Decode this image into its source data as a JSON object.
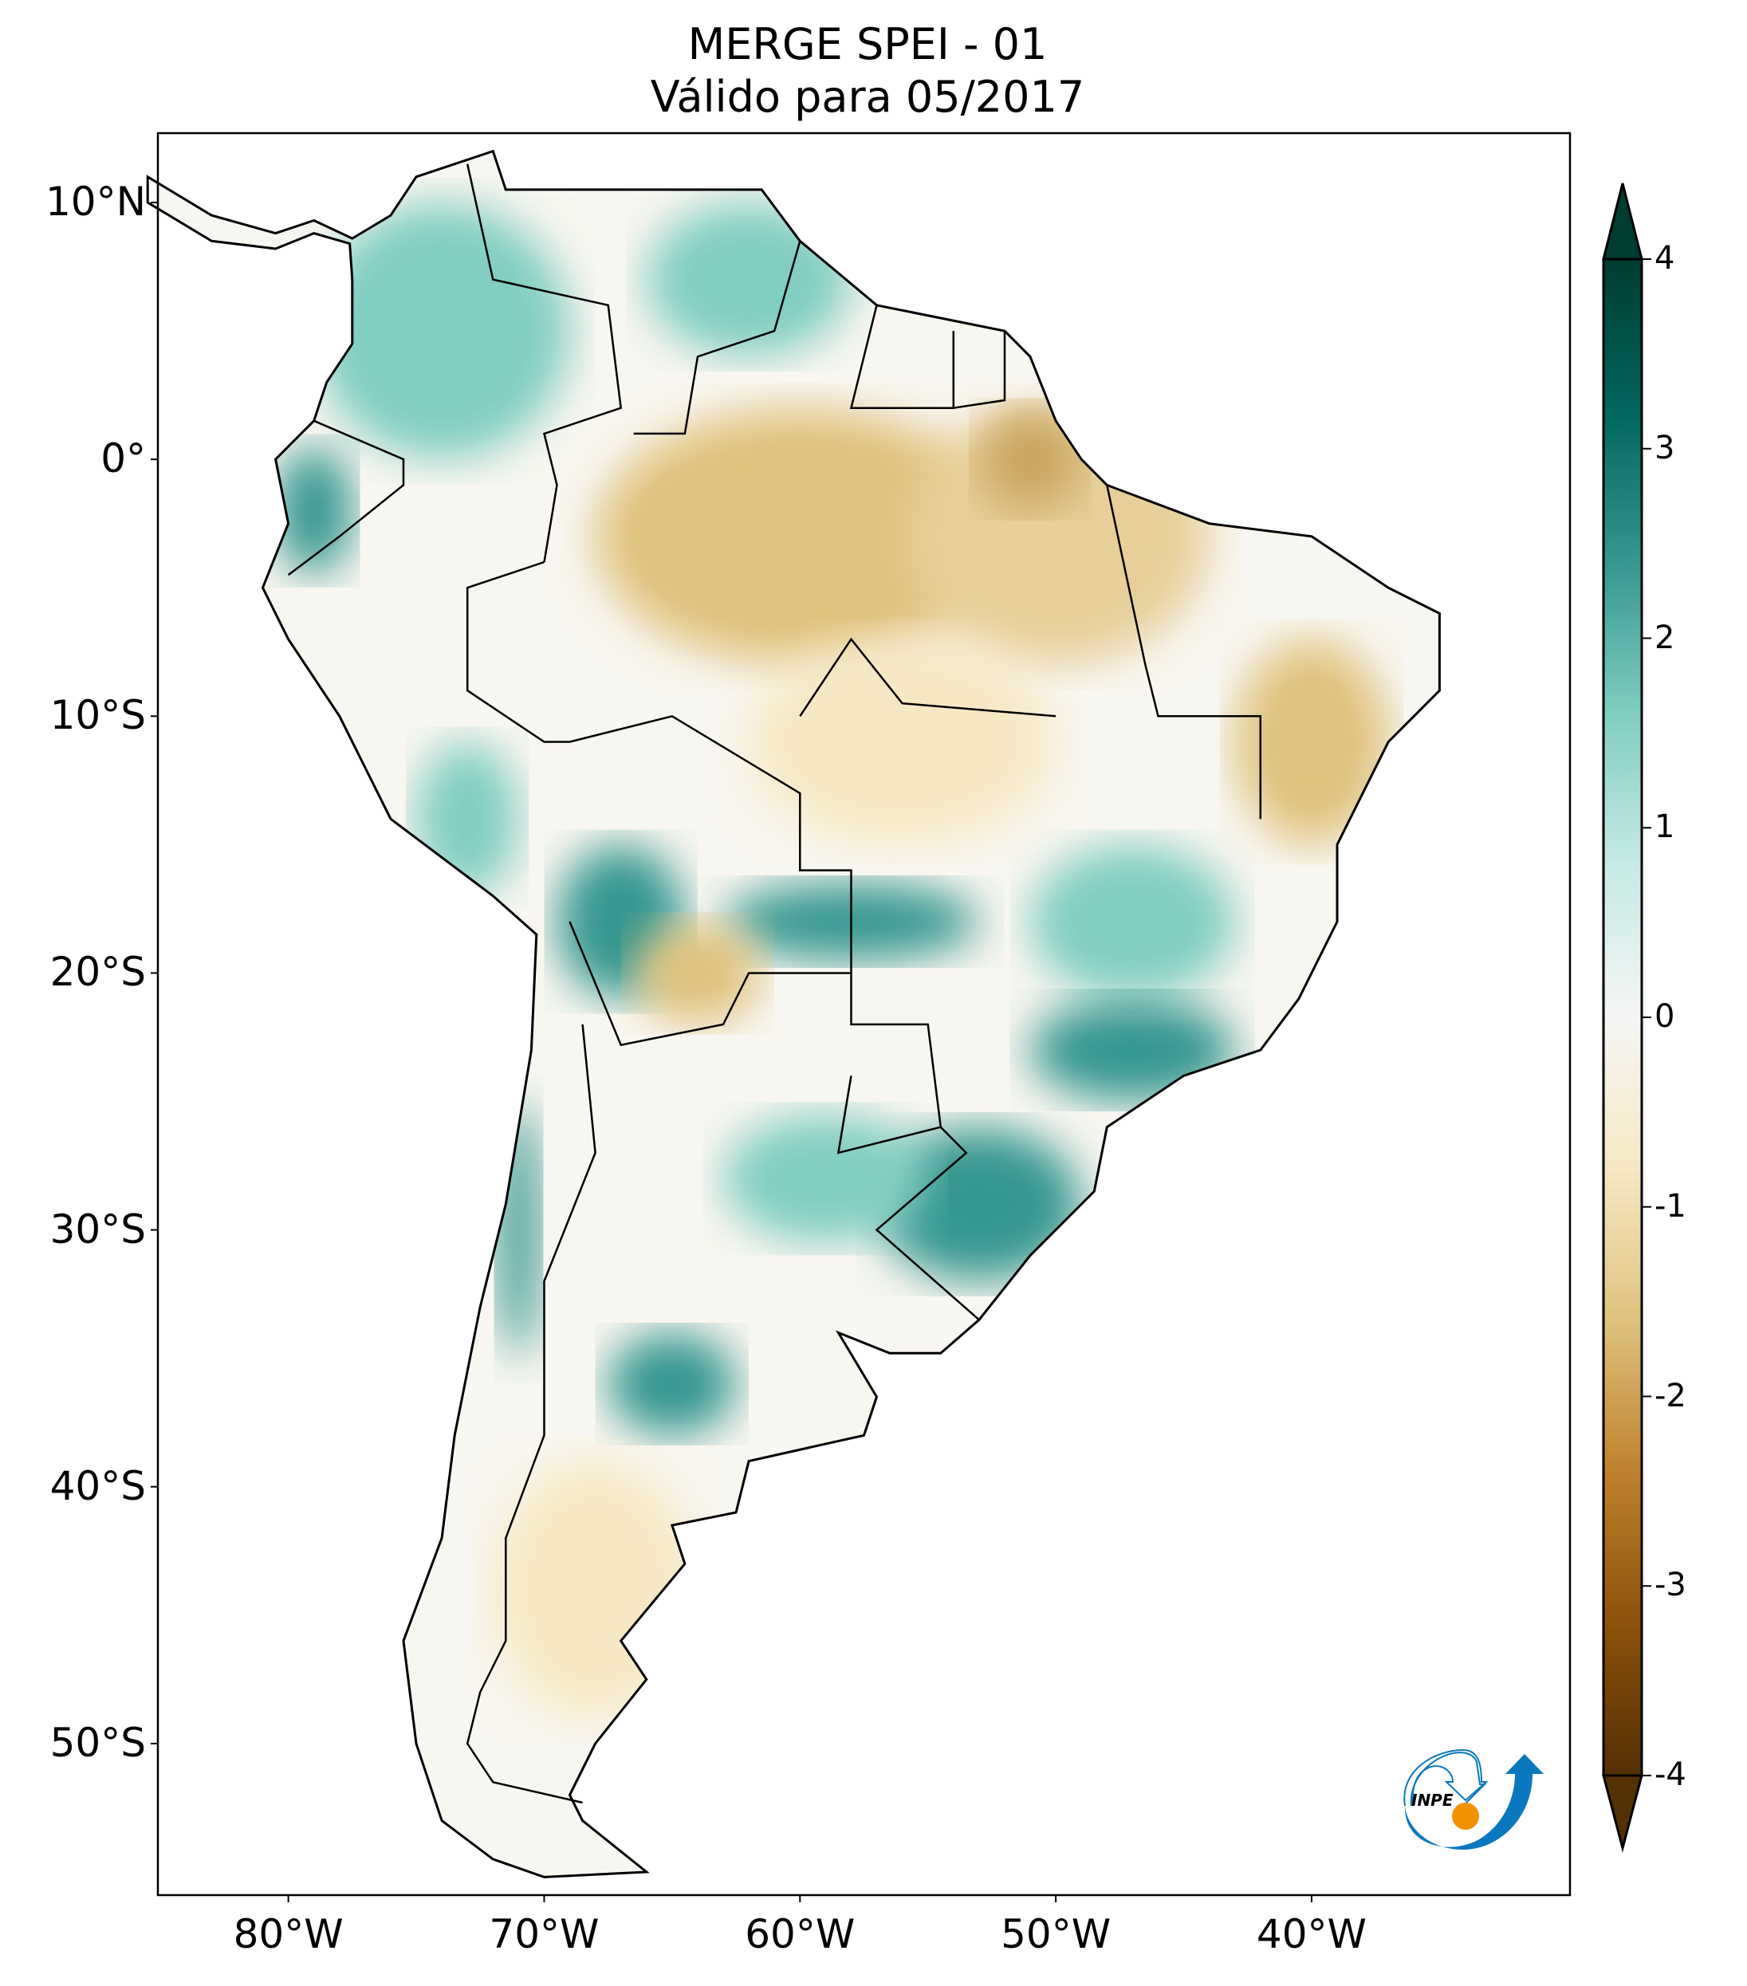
{
  "title": {
    "line1": "MERGE   SPEI - 01",
    "line2": "Válido para 05/2017"
  },
  "map": {
    "extent": {
      "lon_min": -85.1,
      "lon_max": -29.9,
      "lat_min": -55.9,
      "lat_max": 12.7
    },
    "lat_ticks": [
      {
        "value": 10,
        "label": "10°N"
      },
      {
        "value": 0,
        "label": "0°"
      },
      {
        "value": -10,
        "label": "10°S"
      },
      {
        "value": -20,
        "label": "20°S"
      },
      {
        "value": -30,
        "label": "30°S"
      },
      {
        "value": -40,
        "label": "40°S"
      },
      {
        "value": -50,
        "label": "50°S"
      }
    ],
    "lon_ticks": [
      {
        "value": -80,
        "label": "80°W"
      },
      {
        "value": -70,
        "label": "70°W"
      },
      {
        "value": -60,
        "label": "60°W"
      },
      {
        "value": -50,
        "label": "50°W"
      },
      {
        "value": -40,
        "label": "40°W"
      }
    ]
  },
  "colorbar": {
    "range": [
      -4,
      4
    ],
    "extend": "both",
    "colormap": "BrBG",
    "ticks": [
      {
        "value": 4,
        "label": "4"
      },
      {
        "value": 3,
        "label": "3"
      },
      {
        "value": 2,
        "label": "2"
      },
      {
        "value": 1,
        "label": "1"
      },
      {
        "value": 0,
        "label": "0"
      },
      {
        "value": -1,
        "label": "-1"
      },
      {
        "value": -2,
        "label": "-2"
      },
      {
        "value": -3,
        "label": "-3"
      },
      {
        "value": -4,
        "label": "-4"
      }
    ],
    "colors": [
      "#543005",
      "#8c510a",
      "#bf812d",
      "#dfc27d",
      "#f6e8c3",
      "#f5f5f5",
      "#c7eae5",
      "#80cdc1",
      "#35978f",
      "#01665e",
      "#003c30"
    ]
  },
  "logo": {
    "text": "INPE",
    "blue": "#0a78be",
    "orange": "#f39200"
  }
}
